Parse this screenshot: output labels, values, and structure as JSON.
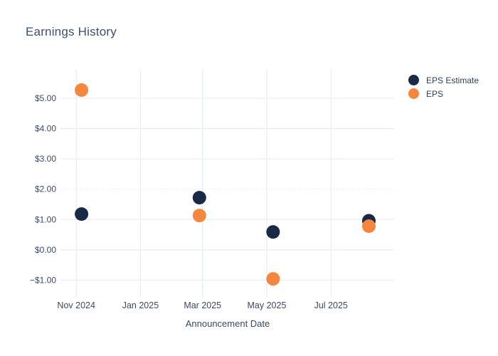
{
  "title": "Earnings History",
  "colors": {
    "background": "#ffffff",
    "eps_estimate": "#182a45",
    "eps": "#f5863d",
    "title_text": "#3d4f6d",
    "tick_text": "#3a4a68",
    "gridline": "#e9eef6"
  },
  "legend": {
    "items": [
      {
        "label": "EPS Estimate",
        "color": "#182a45"
      },
      {
        "label": "EPS",
        "color": "#f5863d"
      }
    ]
  },
  "chart_data": {
    "type": "scatter",
    "title": "Earnings History",
    "xlabel": "Announcement Date",
    "ylabel": "",
    "x_dates": [
      "2024-11-06",
      "2025-02-26",
      "2025-05-07",
      "2025-08-06"
    ],
    "series": [
      {
        "name": "EPS Estimate",
        "color": "#182a45",
        "values": [
          1.18,
          1.72,
          0.59,
          0.96
        ]
      },
      {
        "name": "EPS",
        "color": "#f5863d",
        "values": [
          5.27,
          1.13,
          -0.96,
          0.78
        ]
      }
    ],
    "xticks": [
      {
        "label": "Nov 2024",
        "date": "2024-11-01"
      },
      {
        "label": "Jan 2025",
        "date": "2025-01-01"
      },
      {
        "label": "Mar 2025",
        "date": "2025-03-01"
      },
      {
        "label": "May 2025",
        "date": "2025-05-01"
      },
      {
        "label": "Jul 2025",
        "date": "2025-07-01"
      }
    ],
    "yticks": [
      {
        "label": "$5.00",
        "value": 5
      },
      {
        "label": "$4.00",
        "value": 4
      },
      {
        "label": "$3.00",
        "value": 3
      },
      {
        "label": "$2.00",
        "value": 2
      },
      {
        "label": "$1.00",
        "value": 1
      },
      {
        "label": "$0.00",
        "value": 0
      },
      {
        "label": "−$1.00",
        "value": -1
      }
    ],
    "dotted_gridline_value": 2,
    "xlim": [
      "2024-10-17",
      "2025-08-30"
    ],
    "ylim": [
      -1.39,
      5.94
    ],
    "grid": true,
    "legend_position": "top-right",
    "marker_radius": 9.5
  }
}
